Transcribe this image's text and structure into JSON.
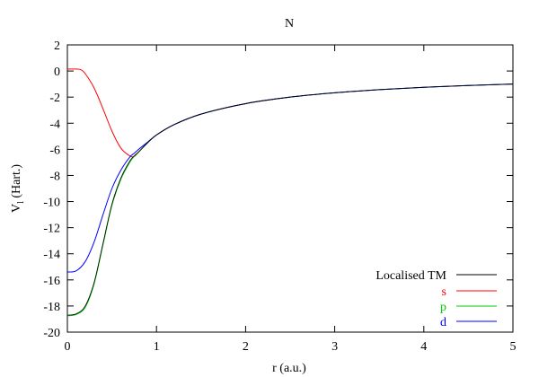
{
  "chart_data": {
    "type": "line",
    "title": "N",
    "xlabel": "r (a.u.)",
    "ylabel_main": "V",
    "ylabel_sub": "l",
    "ylabel_rest": " (Hart.)",
    "xlim": [
      0,
      5
    ],
    "ylim": [
      -20,
      2
    ],
    "x_ticks": [
      0,
      1,
      2,
      3,
      4,
      5
    ],
    "y_ticks": [
      2,
      0,
      -2,
      -4,
      -6,
      -8,
      -10,
      -12,
      -14,
      -16,
      -18,
      -20
    ],
    "legend_position": "bottom-right",
    "series": [
      {
        "name": "Localised TM",
        "color": "#000000",
        "x": [
          0,
          0.1,
          0.2,
          0.3,
          0.4,
          0.5,
          0.6,
          0.7,
          0.75,
          0.8,
          0.9,
          1.0,
          1.2,
          1.5,
          2.0,
          2.5,
          3.0,
          3.5,
          4.0,
          4.5,
          5.0
        ],
        "y": [
          -18.7,
          -18.6,
          -18.0,
          -16.2,
          -13.2,
          -10.2,
          -8.2,
          -6.9,
          -6.5,
          -6.2,
          -5.5,
          -4.9,
          -4.1,
          -3.3,
          -2.5,
          -2.0,
          -1.67,
          -1.43,
          -1.25,
          -1.11,
          -1.0
        ]
      },
      {
        "name": "s",
        "color": "#ff0000",
        "x": [
          0,
          0.1,
          0.15,
          0.2,
          0.3,
          0.4,
          0.5,
          0.6,
          0.7,
          0.75,
          0.8,
          0.9,
          1.0,
          1.2,
          1.5,
          2.0,
          2.5,
          3.0,
          3.5,
          4.0,
          4.5,
          5.0
        ],
        "y": [
          0.15,
          0.15,
          0.1,
          -0.2,
          -1.3,
          -2.9,
          -4.6,
          -5.9,
          -6.5,
          -6.55,
          -6.2,
          -5.5,
          -4.9,
          -4.1,
          -3.3,
          -2.5,
          -2.0,
          -1.67,
          -1.43,
          -1.25,
          -1.11,
          -1.0
        ]
      },
      {
        "name": "p",
        "color": "#00cc00",
        "x": [
          0,
          0.1,
          0.2,
          0.3,
          0.4,
          0.5,
          0.6,
          0.7,
          0.75,
          0.8,
          0.9,
          1.0,
          1.2,
          1.5,
          2.0,
          2.5,
          3.0,
          3.5,
          4.0,
          4.5,
          5.0
        ],
        "y": [
          -18.75,
          -18.65,
          -18.1,
          -16.3,
          -13.3,
          -10.3,
          -8.3,
          -7.0,
          -6.55,
          -6.2,
          -5.5,
          -4.9,
          -4.1,
          -3.3,
          -2.5,
          -2.0,
          -1.67,
          -1.43,
          -1.25,
          -1.11,
          -1.0
        ]
      },
      {
        "name": "d",
        "color": "#0000ff",
        "x": [
          0,
          0.1,
          0.2,
          0.3,
          0.4,
          0.5,
          0.6,
          0.7,
          0.75,
          0.8,
          0.9,
          1.0,
          1.2,
          1.5,
          2.0,
          2.5,
          3.0,
          3.5,
          4.0,
          4.5,
          5.0
        ],
        "y": [
          -15.4,
          -15.3,
          -14.6,
          -13.1,
          -11.0,
          -9.0,
          -7.6,
          -6.6,
          -6.3,
          -6.0,
          -5.45,
          -4.9,
          -4.1,
          -3.3,
          -2.5,
          -2.0,
          -1.67,
          -1.43,
          -1.25,
          -1.11,
          -1.0
        ]
      }
    ]
  }
}
